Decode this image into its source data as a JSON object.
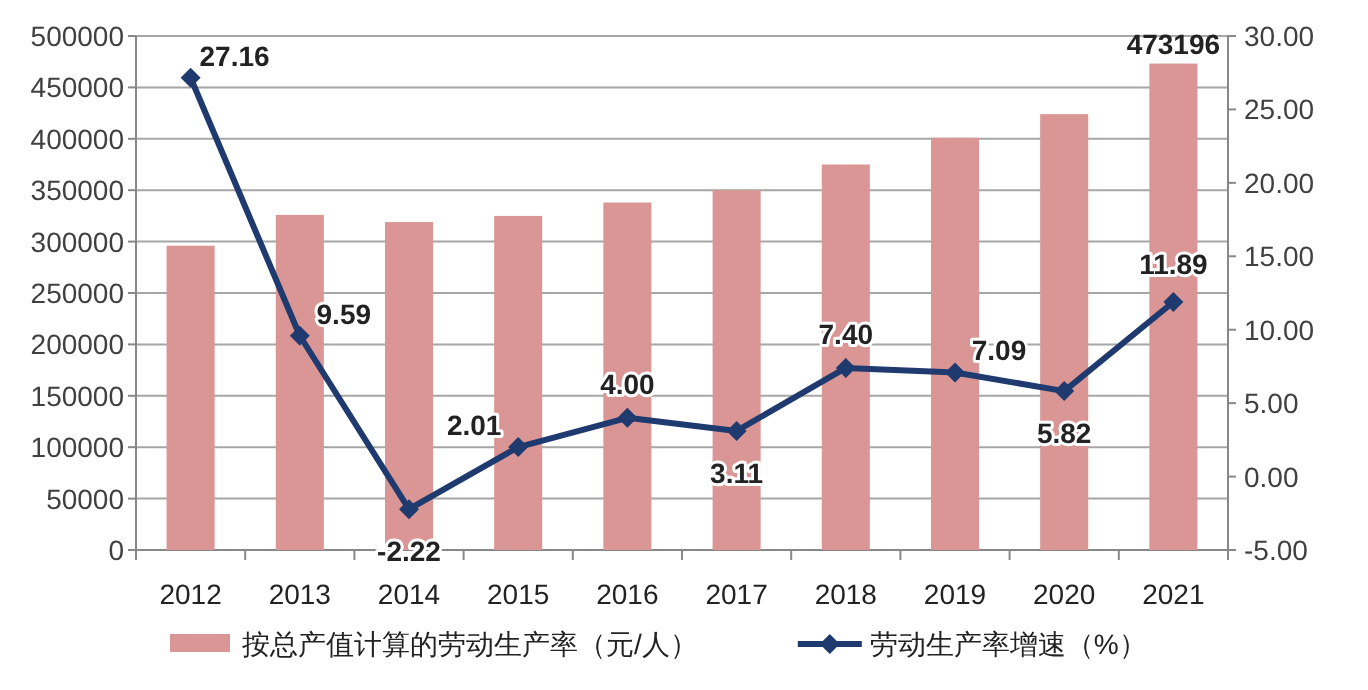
{
  "chart_data": {
    "type": "bar",
    "categories": [
      "2012",
      "2013",
      "2014",
      "2015",
      "2016",
      "2017",
      "2018",
      "2019",
      "2020",
      "2021"
    ],
    "series": [
      {
        "name": "按总产值计算的劳动生产率（元/人）",
        "color": "#d99694",
        "values": [
          296000,
          326000,
          319000,
          325000,
          338000,
          350000,
          375000,
          401000,
          424000,
          473196
        ],
        "value_labels": [
          null,
          null,
          null,
          null,
          null,
          null,
          null,
          null,
          null,
          "473196"
        ]
      },
      {
        "name": "劳动生产率增速（%）",
        "type": "line",
        "axis": "y2",
        "color": "#1f3a6e",
        "marker": "diamond",
        "values": [
          27.16,
          9.59,
          -2.22,
          2.01,
          4.0,
          3.11,
          7.4,
          7.09,
          5.82,
          11.89
        ],
        "value_labels": [
          "27.16",
          "9.59",
          "-2.22",
          "2.01",
          "4.00",
          "3.11",
          "7.40",
          "7.09",
          "5.82",
          "11.89"
        ]
      }
    ],
    "ylim": [
      0,
      500000
    ],
    "yticks": [
      0,
      50000,
      100000,
      150000,
      200000,
      250000,
      300000,
      350000,
      400000,
      450000,
      500000
    ],
    "y2lim": [
      -5,
      30
    ],
    "y2ticks": [
      {
        "value": -5,
        "label": "-5.00"
      },
      {
        "value": 0,
        "label": "0.00"
      },
      {
        "value": 5,
        "label": "5.00"
      },
      {
        "value": 10,
        "label": "10.00"
      },
      {
        "value": 15,
        "label": "15.00"
      },
      {
        "value": 20,
        "label": "20.00"
      },
      {
        "value": 25,
        "label": "25.00"
      },
      {
        "value": 30,
        "label": "30.00"
      }
    ],
    "grid": "y",
    "legend": "bottom"
  }
}
